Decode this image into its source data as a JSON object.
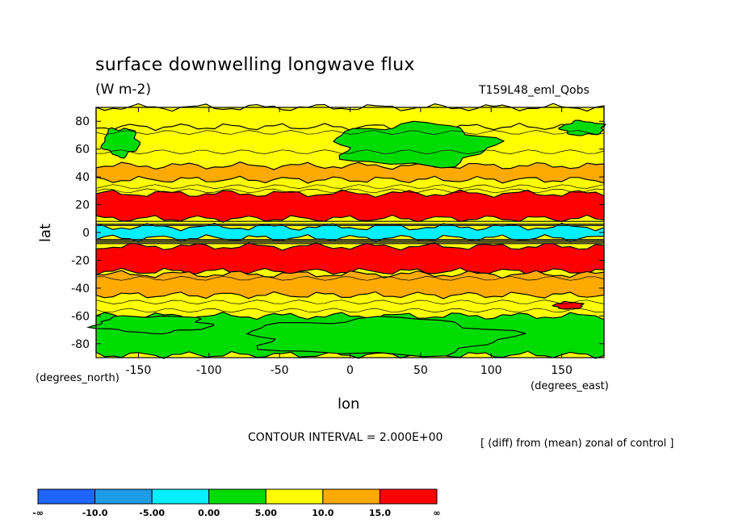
{
  "chart_data": {
    "type": "heatmap",
    "title": "surface downwelling longwave flux",
    "units": "(W m-2)",
    "run_label": "T159L48_eml_Qobs",
    "xlabel": "lon",
    "ylabel": "lat",
    "x_units": "(degrees_east)",
    "y_units": "(degrees_north)",
    "xlim": [
      -180,
      180
    ],
    "ylim": [
      -90,
      90
    ],
    "x_ticks": [
      -150,
      -100,
      -50,
      0,
      50,
      100,
      150
    ],
    "y_ticks": [
      80,
      60,
      40,
      20,
      0,
      -20,
      -40,
      -60,
      -80
    ],
    "contour_interval": "CONTOUR INTERVAL = 2.000E+00",
    "note": "[ (diff) from (mean) zonal of control ]",
    "colorbar": {
      "labels": [
        "-∞",
        "-10.0",
        "-5.00",
        "0.00",
        "5.00",
        "10.0",
        "15.0",
        "∞"
      ],
      "colors": [
        "#1e64ff",
        "#1e9be6",
        "#00f0ff",
        "#00dc00",
        "#ffff00",
        "#ffaa00",
        "#ff0000"
      ]
    },
    "zonal_bands": [
      {
        "lat": [
          76,
          90
        ],
        "level": "5 to 10"
      },
      {
        "lat": [
          38,
          48
        ],
        "level": "10 to 15"
      },
      {
        "lat": [
          10,
          28
        ],
        "level": "> 15"
      },
      {
        "lat": [
          -4,
          4
        ],
        "level": "-5 to 0"
      },
      {
        "lat": [
          -28,
          -10
        ],
        "level": "> 15"
      },
      {
        "lat": [
          -45,
          -30
        ],
        "level": "10 to 15"
      },
      {
        "lat": [
          -88,
          -60
        ],
        "level": "0 to 5"
      }
    ],
    "regions": [
      {
        "lon": [
          -175,
          -150
        ],
        "lat": [
          55,
          75
        ],
        "level": "0 to 5"
      },
      {
        "lon": [
          -10,
          100
        ],
        "lat": [
          48,
          78
        ],
        "level": "0 to 5"
      },
      {
        "lon": [
          150,
          180
        ],
        "lat": [
          70,
          80
        ],
        "level": "0 to 5"
      },
      {
        "lon": [
          -180,
          -100
        ],
        "lat": [
          -72,
          -60
        ],
        "level": "0 to 5"
      },
      {
        "lon": [
          -70,
          110
        ],
        "lat": [
          -88,
          -62
        ],
        "level": "0 to 5"
      },
      {
        "lon": [
          145,
          165
        ],
        "lat": [
          -55,
          -50
        ],
        "level": "> 15"
      }
    ]
  }
}
